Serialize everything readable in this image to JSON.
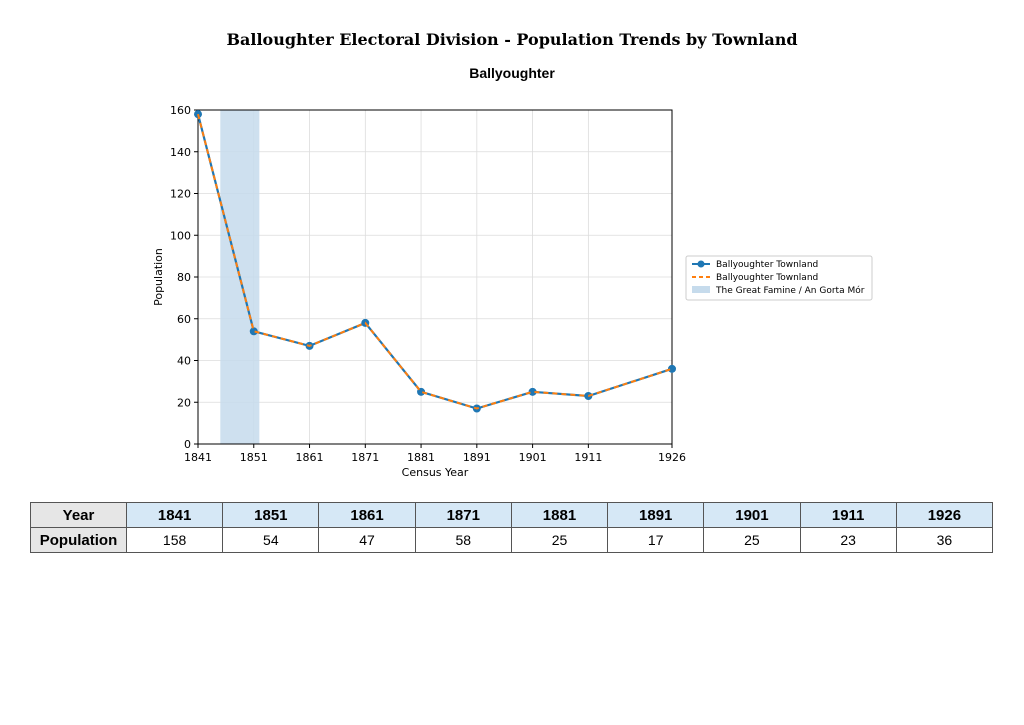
{
  "title": "Balloughter Electoral Division - Population Trends by Townland",
  "subtitle": "Ballyoughter",
  "chart_data": {
    "type": "line",
    "x": [
      1841,
      1851,
      1861,
      1871,
      1881,
      1891,
      1901,
      1911,
      1926
    ],
    "series": [
      {
        "name": "Ballyoughter Townland",
        "values": [
          158,
          54,
          47,
          58,
          25,
          17,
          25,
          23,
          36
        ],
        "color": "#1f77b4",
        "style": "solid-markers"
      },
      {
        "name": "Ballyoughter Townland",
        "values": [
          158,
          54,
          47,
          58,
          25,
          17,
          25,
          23,
          36
        ],
        "color": "#ff7f0e",
        "style": "dashed"
      }
    ],
    "shaded_region": {
      "label": "The Great Famine / An Gorta Mór",
      "x_start": 1845,
      "x_end": 1852,
      "color": "#c6dbec"
    },
    "xlabel": "Census Year",
    "ylabel": "Population",
    "xlim": [
      1841,
      1926
    ],
    "ylim": [
      0,
      160
    ],
    "xticks": [
      1841,
      1851,
      1861,
      1871,
      1881,
      1891,
      1901,
      1911,
      1926
    ],
    "yticks": [
      0,
      20,
      40,
      60,
      80,
      100,
      120,
      140,
      160
    ],
    "grid": true,
    "legend_position": "outside-right"
  },
  "table": {
    "year_header": "Year",
    "population_header": "Population",
    "years": [
      "1841",
      "1851",
      "1861",
      "1871",
      "1881",
      "1891",
      "1901",
      "1911",
      "1926"
    ],
    "populations": [
      "158",
      "54",
      "47",
      "58",
      "25",
      "17",
      "25",
      "23",
      "36"
    ]
  }
}
